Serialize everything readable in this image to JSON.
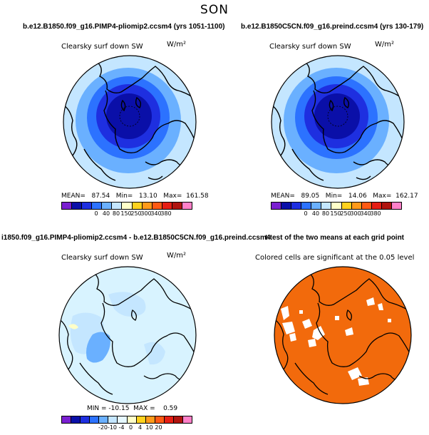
{
  "title": "SON",
  "panels": {
    "top_left": {
      "case_title": "b.e12.B1850.f09_g16.PIMP4-pliomip2.ccsm4 (yrs 1051-1100)",
      "variable": "Clearsky surf down SW",
      "units": "W/m²",
      "stats": "MEAN=   87.54   Min=   13.10   Max=  161.58"
    },
    "top_right": {
      "case_title": "b.e12.B1850C5CN.f09_g16.preind.ccsm4 (yrs 130-179)",
      "variable": "Clearsky surf down SW",
      "units": "W/m²",
      "stats": "MEAN=   89.05   Min=   14.06   Max=  162.17"
    },
    "bottom_left": {
      "case_title": "i1850.f09_g16.PIMP4-pliomip2.ccsm4 - b.e12.B1850C5CN.f09_g16.preind.ccsm4",
      "variable": "Clearsky surf down SW",
      "units": "W/m²",
      "stats": "MIN = -10.15  MAX =    0.59"
    },
    "bottom_right": {
      "case_title": "t-test of the two means at each grid point",
      "subtitle": "Colored cells are significant at the 0.05 level"
    }
  },
  "colorbars": {
    "absolute": {
      "labels": [
        "0",
        "40",
        "80",
        "150",
        "250",
        "300",
        "340",
        "380"
      ],
      "colors": [
        "#7a1fd1",
        "#0a0fa8",
        "#1e2fe0",
        "#2c72ff",
        "#6ab0ff",
        "#c4e6ff",
        "#ffffc8",
        "#ffd21e",
        "#ff9a1a",
        "#ff5a14",
        "#e61e14",
        "#b0140f",
        "#ff80c8"
      ]
    },
    "difference": {
      "labels": [
        "-20",
        "-10",
        "-4",
        "0",
        "4",
        "10",
        "20"
      ],
      "colors": [
        "#7a1fd1",
        "#0a0fa8",
        "#1e2fe0",
        "#2c72ff",
        "#6ab0ff",
        "#c4e6ff",
        "#e6f8ff",
        "#ffffc8",
        "#ffd21e",
        "#ff9a1a",
        "#ff5a14",
        "#e61e14",
        "#b0140f",
        "#ff80c8"
      ]
    }
  },
  "map_colors": {
    "ring1": "#c4e6ff",
    "ring2": "#6ab0ff",
    "ring3": "#2c72ff",
    "ring4": "#1e2fe0",
    "ring5": "#0a0fa8",
    "diff_bg": "#d8f3ff",
    "diff_mid": "#c4e6ff",
    "diff_dark": "#6ab0ff",
    "ttest_fill": "#f26a0c"
  }
}
